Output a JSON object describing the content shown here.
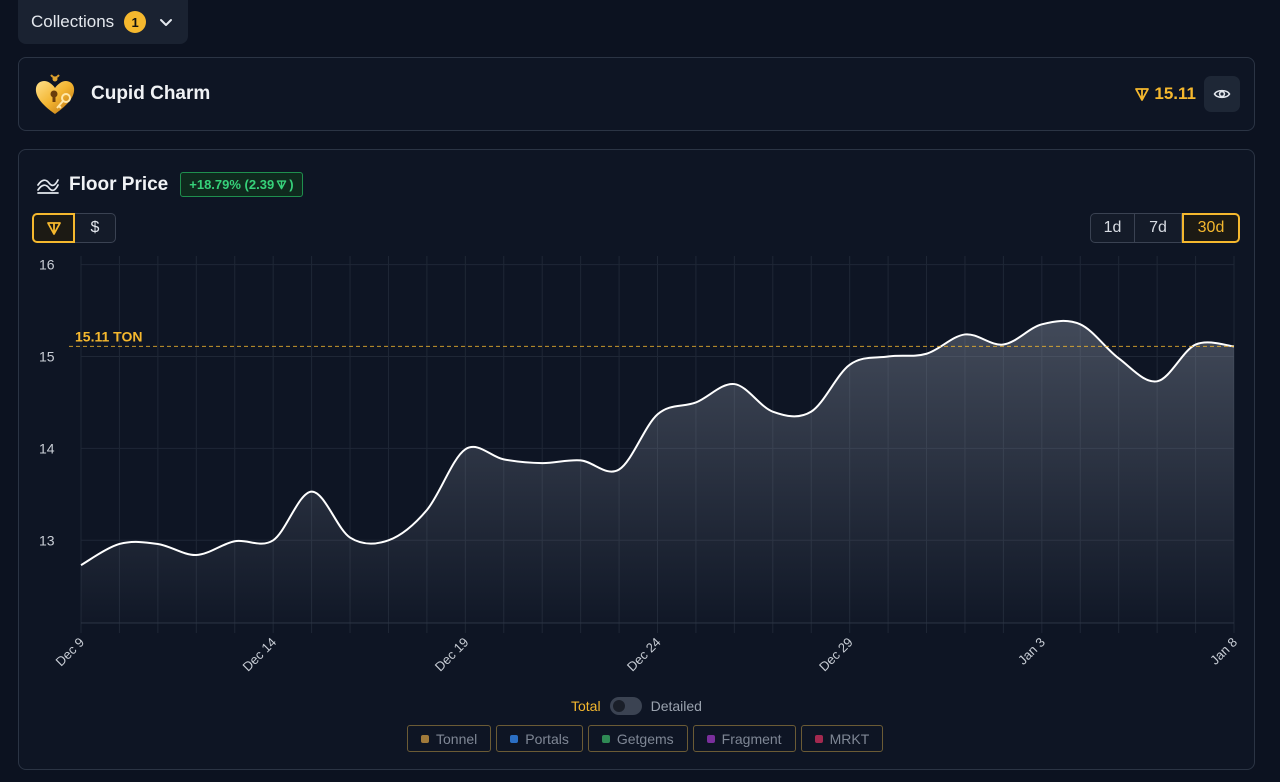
{
  "collections": {
    "label": "Collections",
    "count": "1"
  },
  "collection": {
    "name": "Cupid Charm",
    "price": "15.11"
  },
  "floor_price": {
    "title": "Floor Price",
    "change": "+18.79% (2.39 ",
    "change_suffix": ")",
    "currency_ton_icon": "ton-icon",
    "currency_usd_label": "$",
    "ranges": [
      "1d",
      "7d",
      "30d"
    ],
    "active_range": "30d"
  },
  "chart_data": {
    "type": "area",
    "x": [
      "Dec 9",
      "Dec 10",
      "Dec 11",
      "Dec 12",
      "Dec 13",
      "Dec 14",
      "Dec 15",
      "Dec 16",
      "Dec 17",
      "Dec 18",
      "Dec 19",
      "Dec 20",
      "Dec 21",
      "Dec 22",
      "Dec 23",
      "Dec 24",
      "Dec 25",
      "Dec 26",
      "Dec 27",
      "Dec 28",
      "Dec 29",
      "Dec 30",
      "Dec 31",
      "Jan 1",
      "Jan 2",
      "Jan 3",
      "Jan 4",
      "Jan 5",
      "Jan 6",
      "Jan 7",
      "Jan 8"
    ],
    "values": [
      12.73,
      12.96,
      12.96,
      12.84,
      12.99,
      13.0,
      13.53,
      13.03,
      13.0,
      13.33,
      13.99,
      13.88,
      13.84,
      13.87,
      13.77,
      14.37,
      14.5,
      14.7,
      14.4,
      14.4,
      14.91,
      15.0,
      15.03,
      15.24,
      15.13,
      15.35,
      15.35,
      14.98,
      14.73,
      15.13,
      15.11
    ],
    "x_ticks": [
      "Dec 9",
      "Dec 14",
      "Dec 19",
      "Dec 24",
      "Dec 29",
      "Jan 3",
      "Jan 8"
    ],
    "y_ticks": [
      13,
      14,
      15,
      16
    ],
    "ylim": [
      12.1,
      16.05
    ],
    "reference_value": 15.11,
    "reference_label": "15.11 TON",
    "line_color": "#ffffff",
    "reference_color": "#f5b82e",
    "grid": true
  },
  "mode_toggle": {
    "total": "Total",
    "detailed": "Detailed"
  },
  "legend": [
    {
      "label": "Tonnel",
      "color": "#a07a3a"
    },
    {
      "label": "Portals",
      "color": "#2b6fc4"
    },
    {
      "label": "Getgems",
      "color": "#2f8a55"
    },
    {
      "label": "Fragment",
      "color": "#7a2f9c"
    },
    {
      "label": "MRKT",
      "color": "#a3294f"
    }
  ],
  "accent_color": "#f5b82e"
}
